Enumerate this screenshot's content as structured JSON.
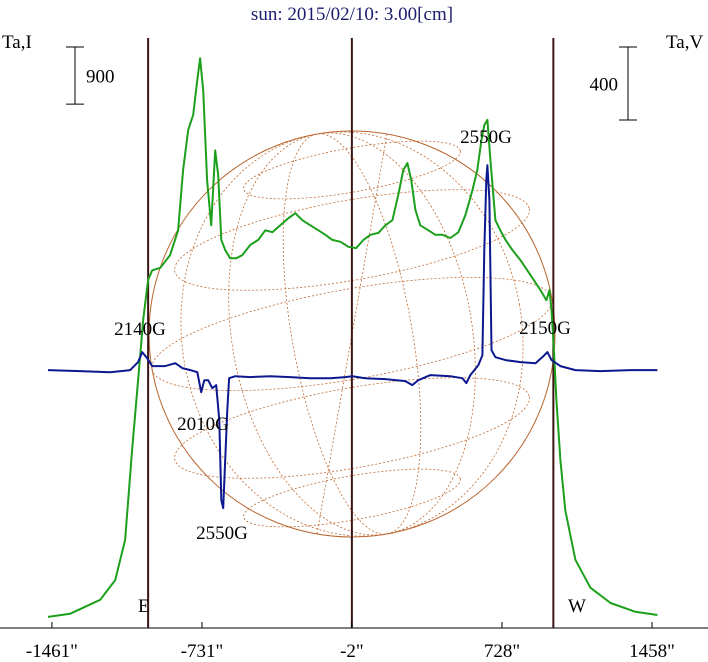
{
  "chart_data": {
    "type": "line",
    "title": "sun: 2015/02/10: 3.00[cm]",
    "y_label": "Ta,I",
    "y2_label": "Ta,V",
    "xlim": [
      -1480,
      1485
    ],
    "ylim": [
      0,
      9200
    ],
    "y2lim": [
      -1380,
      1820
    ],
    "xticks": [
      {
        "value": -1461,
        "label": "-1461\""
      },
      {
        "value": -731,
        "label": "-731\""
      },
      {
        "value": -2,
        "label": "-2\""
      },
      {
        "value": 728,
        "label": "728\""
      },
      {
        "value": 1458,
        "label": "1458\""
      }
    ],
    "vlines": [
      -993,
      -2,
      978
    ],
    "limb_labels": [
      "E",
      "W"
    ],
    "scale_bars": [
      {
        "value": 900,
        "label": "900",
        "axis": "y"
      },
      {
        "value": 400,
        "label": "400",
        "axis": "y2"
      }
    ],
    "annotations": [
      "2140G",
      "2010G",
      "2550G",
      "2550G",
      "2150G"
    ],
    "series": [
      {
        "name": "I",
        "color": "#1ca01c",
        "axis": "y",
        "x": [
          -1480,
          -1372,
          -1226,
          -1153,
          -1105,
          -1071,
          -1042,
          -1017,
          -993,
          -973,
          -934,
          -886,
          -847,
          -823,
          -798,
          -774,
          -754,
          -740,
          -725,
          -706,
          -686,
          -667,
          -652,
          -637,
          -618,
          -594,
          -565,
          -535,
          -496,
          -457,
          -423,
          -389,
          -350,
          -311,
          -277,
          -243,
          -204,
          -165,
          -131,
          -97,
          -58,
          -19,
          19,
          54,
          88,
          127,
          161,
          195,
          224,
          248,
          268,
          287,
          307,
          331,
          370,
          404,
          438,
          477,
          516,
          550,
          584,
          608,
          628,
          642,
          657,
          672,
          696,
          720,
          745,
          779,
          818,
          866,
          915,
          944,
          959,
          969,
          978,
          993,
          1012,
          1036,
          1085,
          1158,
          1256,
          1377,
          1484
        ],
        "values": [
          80,
          130,
          350,
          660,
          1290,
          2710,
          3810,
          4760,
          5390,
          5540,
          5580,
          5780,
          6170,
          7120,
          7750,
          7990,
          8540,
          8880,
          8380,
          6960,
          6250,
          7430,
          7040,
          6020,
          5860,
          5730,
          5730,
          5780,
          5940,
          6020,
          6170,
          6140,
          6250,
          6360,
          6440,
          6330,
          6250,
          6170,
          6100,
          6020,
          5990,
          5910,
          5890,
          6020,
          6100,
          6130,
          6250,
          6330,
          6730,
          7120,
          7230,
          6960,
          6490,
          6250,
          6170,
          6100,
          6100,
          6050,
          6140,
          6410,
          6800,
          7120,
          7590,
          7830,
          7910,
          7280,
          6330,
          6170,
          6020,
          5860,
          5700,
          5470,
          5230,
          5070,
          5230,
          4910,
          4440,
          3500,
          2550,
          1760,
          980,
          540,
          300,
          160,
          110
        ]
      },
      {
        "name": "V",
        "color": "#0c1890",
        "axis": "y2",
        "x": [
          -1480,
          -1324,
          -1178,
          -1080,
          -1042,
          -1022,
          -998,
          -973,
          -910,
          -861,
          -827,
          -788,
          -754,
          -735,
          -720,
          -701,
          -681,
          -662,
          -647,
          -637,
          -628,
          -618,
          -608,
          -599,
          -569,
          -496,
          -399,
          -302,
          -204,
          -107,
          -34,
          0,
          63,
          161,
          258,
          292,
          321,
          380,
          477,
          535,
          555,
          574,
          613,
          633,
          642,
          652,
          657,
          667,
          677,
          696,
          745,
          818,
          891,
          930,
          949,
          969,
          1012,
          1085,
          1207,
          1353,
          1484
        ],
        "values": [
          0,
          -5,
          -11,
          0,
          44,
          99,
          66,
          22,
          22,
          38,
          11,
          0,
          -11,
          -121,
          -55,
          -55,
          -99,
          -82,
          -274,
          -712,
          -756,
          -493,
          -219,
          -44,
          -33,
          -38,
          -33,
          -38,
          -44,
          -44,
          -38,
          -33,
          -44,
          -49,
          -60,
          -82,
          -55,
          -27,
          -33,
          -44,
          -71,
          -27,
          27,
          82,
          658,
          1041,
          1123,
          932,
          110,
          71,
          55,
          44,
          38,
          77,
          99,
          55,
          22,
          0,
          -5,
          0,
          0
        ]
      }
    ]
  }
}
